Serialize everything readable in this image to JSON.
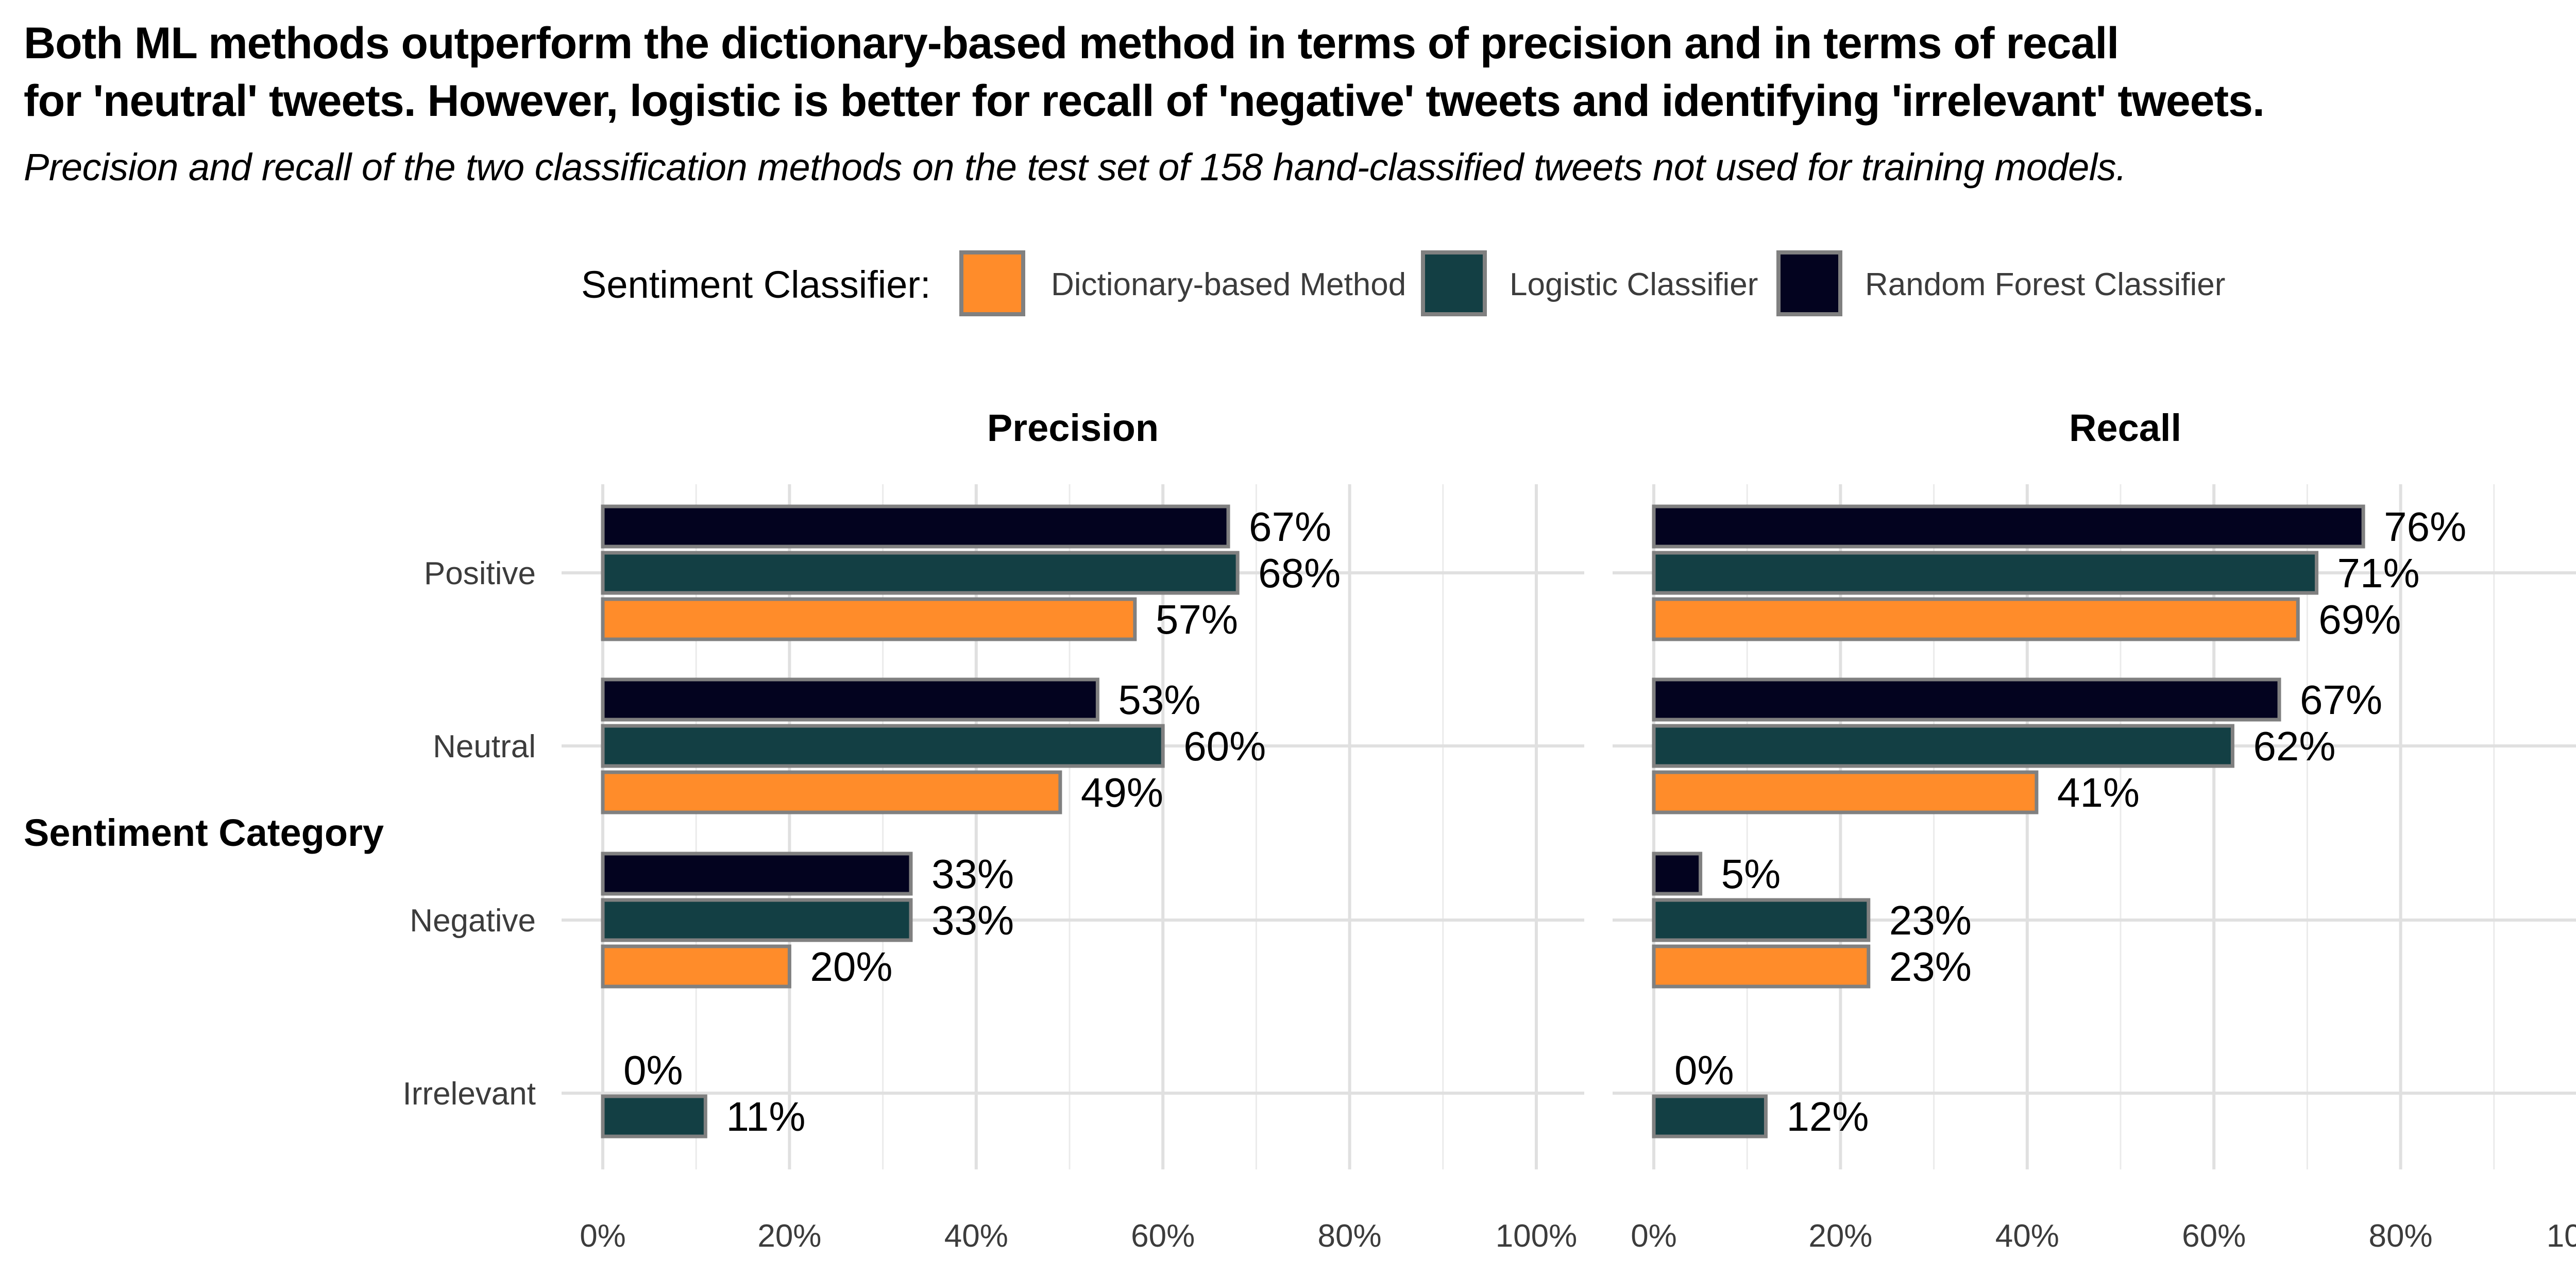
{
  "title_lines": [
    "Both ML methods outperform the dictionary-based method in terms of precision and in terms of recall",
    "for 'neutral' tweets. However, logistic is better for recall of 'negative' tweets and identifying 'irrelevant' tweets."
  ],
  "subtitle": "Precision and recall of the two classification methods on the test set of 158 hand-classified tweets not used for training models.",
  "chart_data": {
    "type": "bar",
    "orientation": "horizontal",
    "legend_title": "Sentiment Classifier:",
    "legend_position": "top",
    "ylabel": "Sentiment Category",
    "xlim": [
      0,
      1
    ],
    "x_ticks": [
      0,
      0.2,
      0.4,
      0.6,
      0.8,
      1.0
    ],
    "x_tick_labels": [
      "0%",
      "20%",
      "40%",
      "60%",
      "80%",
      "100%"
    ],
    "grid": true,
    "categories": [
      "Positive",
      "Neutral",
      "Negative",
      "Irrelevant"
    ],
    "series": [
      {
        "name": "Dictionary-based Method",
        "color": "#FF8C2A"
      },
      {
        "name": "Logistic Classifier",
        "color": "#133F44"
      },
      {
        "name": "Random Forest Classifier",
        "color": "#03031F"
      }
    ],
    "bar_border_color": "#808080",
    "panels": [
      {
        "title": "Precision",
        "values": {
          "Positive": {
            "Random Forest Classifier": 0.67,
            "Logistic Classifier": 0.68,
            "Dictionary-based Method": 0.57
          },
          "Neutral": {
            "Random Forest Classifier": 0.53,
            "Logistic Classifier": 0.6,
            "Dictionary-based Method": 0.49
          },
          "Negative": {
            "Random Forest Classifier": 0.33,
            "Logistic Classifier": 0.33,
            "Dictionary-based Method": 0.2
          },
          "Irrelevant": {
            "Random Forest Classifier": 0.0,
            "Logistic Classifier": 0.11
          }
        },
        "labels": {
          "Positive": {
            "Random Forest Classifier": "67%",
            "Logistic Classifier": "68%",
            "Dictionary-based Method": "57%"
          },
          "Neutral": {
            "Random Forest Classifier": "53%",
            "Logistic Classifier": "60%",
            "Dictionary-based Method": "49%"
          },
          "Negative": {
            "Random Forest Classifier": "33%",
            "Logistic Classifier": "33%",
            "Dictionary-based Method": "20%"
          },
          "Irrelevant": {
            "Random Forest Classifier": "0%",
            "Logistic Classifier": "11%"
          }
        }
      },
      {
        "title": "Recall",
        "values": {
          "Positive": {
            "Random Forest Classifier": 0.76,
            "Logistic Classifier": 0.71,
            "Dictionary-based Method": 0.69
          },
          "Neutral": {
            "Random Forest Classifier": 0.67,
            "Logistic Classifier": 0.62,
            "Dictionary-based Method": 0.41
          },
          "Negative": {
            "Random Forest Classifier": 0.05,
            "Logistic Classifier": 0.23,
            "Dictionary-based Method": 0.23
          },
          "Irrelevant": {
            "Random Forest Classifier": 0.0,
            "Logistic Classifier": 0.12
          }
        },
        "labels": {
          "Positive": {
            "Random Forest Classifier": "76%",
            "Logistic Classifier": "71%",
            "Dictionary-based Method": "69%"
          },
          "Neutral": {
            "Random Forest Classifier": "67%",
            "Logistic Classifier": "62%",
            "Dictionary-based Method": "41%"
          },
          "Negative": {
            "Random Forest Classifier": "5%",
            "Logistic Classifier": "23%",
            "Dictionary-based Method": "23%"
          },
          "Irrelevant": {
            "Random Forest Classifier": "0%",
            "Logistic Classifier": "12%"
          }
        }
      }
    ]
  }
}
